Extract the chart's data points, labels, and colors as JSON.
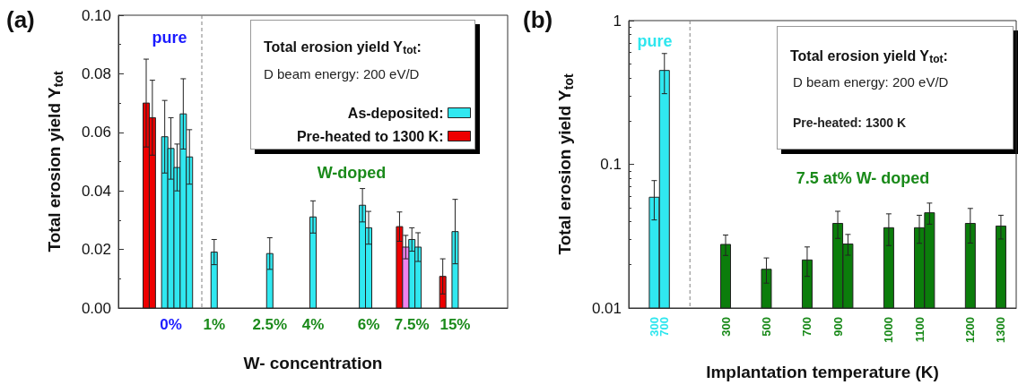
{
  "chart_data": [
    {
      "type": "bar",
      "title": "(a)",
      "xlabel": "W- concentration",
      "ylabel": "Total erosion yield Y$_{tot}$",
      "legend_title": "Total erosion yield Y$_{tot}$:",
      "annotations": [
        "D beam energy: 200 eV/D",
        "pure",
        "W-doped"
      ],
      "categories": [
        null,
        null,
        null,
        null,
        null,
        null,
        null,
        null,
        "0%",
        null,
        null,
        null,
        null,
        null,
        null,
        "1%",
        null,
        null,
        null,
        null,
        null,
        null,
        null,
        null,
        "2.5%",
        null,
        null,
        null,
        null,
        null,
        null,
        "4%",
        null,
        null,
        null,
        null,
        null,
        null,
        null,
        null,
        "6%",
        null,
        null,
        null,
        null,
        null,
        null,
        "7.5%",
        null,
        null,
        null,
        null,
        null,
        null,
        "15%",
        null,
        null,
        null,
        null,
        null,
        null,
        null,
        null
      ],
      "series": [
        {
          "name": "As-deposited:",
          "color": "#30e8f0",
          "values": [
            null,
            null,
            null,
            null,
            null,
            null,
            null,
            0.0585,
            0.0545,
            0.048,
            0.0663,
            0.0516,
            null,
            null,
            null,
            0.0191,
            null,
            null,
            null,
            null,
            null,
            null,
            null,
            null,
            0.0186,
            null,
            null,
            null,
            null,
            null,
            null,
            0.0311,
            null,
            null,
            null,
            null,
            null,
            null,
            null,
            0.0351,
            0.0274,
            null,
            null,
            null,
            null,
            null,
            null,
            0.0234,
            0.0208,
            null,
            null,
            null,
            null,
            null,
            0.0261,
            null,
            null,
            null,
            null,
            null,
            null,
            null,
            null
          ],
          "errors": [
            null,
            null,
            null,
            null,
            null,
            null,
            null,
            0.0124,
            0.0105,
            0.008,
            0.012,
            0.0093,
            null,
            null,
            null,
            0.0043,
            null,
            null,
            null,
            null,
            null,
            null,
            null,
            null,
            0.0054,
            null,
            null,
            null,
            null,
            null,
            null,
            0.0055,
            null,
            null,
            null,
            null,
            null,
            null,
            null,
            0.0057,
            0.0056,
            null,
            null,
            null,
            null,
            null,
            null,
            0.004,
            0.0049,
            null,
            null,
            null,
            null,
            null,
            0.011,
            null,
            null,
            null,
            null,
            null,
            null,
            null,
            null
          ]
        },
        {
          "name": "Pre-heated to 1300 K:",
          "color": "#ee0000",
          "values": [
            null,
            null,
            null,
            null,
            0.07,
            0.065,
            null,
            null,
            null,
            null,
            null,
            null,
            null,
            null,
            null,
            null,
            null,
            null,
            null,
            null,
            null,
            null,
            null,
            null,
            null,
            null,
            null,
            null,
            null,
            null,
            null,
            null,
            null,
            null,
            null,
            null,
            null,
            null,
            null,
            null,
            null,
            null,
            null,
            null,
            null,
            0.0278,
            null,
            null,
            null,
            null,
            null,
            null,
            0.0108,
            null,
            null,
            null,
            null,
            null,
            null,
            null,
            null,
            null,
            null
          ],
          "errors": [
            null,
            null,
            null,
            null,
            0.015,
            0.0128,
            null,
            null,
            null,
            null,
            null,
            null,
            null,
            null,
            null,
            null,
            null,
            null,
            null,
            null,
            null,
            null,
            null,
            null,
            null,
            null,
            null,
            null,
            null,
            null,
            null,
            null,
            null,
            null,
            null,
            null,
            null,
            null,
            null,
            null,
            null,
            null,
            null,
            null,
            null,
            0.005,
            null,
            null,
            null,
            null,
            null,
            null,
            0.006,
            null,
            null,
            null,
            null,
            null,
            null,
            null,
            null,
            null,
            null
          ]
        },
        {
          "color": "#ee82ee",
          "values": [
            null,
            null,
            null,
            null,
            null,
            null,
            null,
            null,
            null,
            null,
            null,
            null,
            null,
            null,
            null,
            null,
            null,
            null,
            null,
            null,
            null,
            null,
            null,
            null,
            null,
            null,
            null,
            null,
            null,
            null,
            null,
            null,
            null,
            null,
            null,
            null,
            null,
            null,
            null,
            null,
            null,
            null,
            null,
            null,
            null,
            null,
            0.0208,
            null,
            null,
            null,
            null,
            null,
            null,
            null,
            null,
            null,
            null,
            null,
            null,
            null,
            null,
            null,
            null
          ],
          "errors": [
            null,
            null,
            null,
            null,
            null,
            null,
            null,
            null,
            null,
            null,
            null,
            null,
            null,
            null,
            null,
            null,
            null,
            null,
            null,
            null,
            null,
            null,
            null,
            null,
            null,
            null,
            null,
            null,
            null,
            null,
            null,
            null,
            null,
            null,
            null,
            null,
            null,
            null,
            null,
            null,
            null,
            null,
            null,
            null,
            null,
            null,
            0.004,
            null,
            null,
            null,
            null,
            null,
            null,
            null,
            null,
            null,
            null,
            null,
            null,
            null,
            null,
            null,
            null
          ]
        }
      ],
      "ylim": [
        0,
        0.1
      ],
      "yticks": [
        {
          "value": 0,
          "label": "0.00"
        },
        {
          "value": 0.02,
          "label": "0.02"
        },
        {
          "value": 0.04,
          "label": "0.04"
        },
        {
          "value": 0.06,
          "label": "0.06"
        },
        {
          "value": 0.08,
          "label": "0.08"
        },
        {
          "value": 0.1,
          "label": "0.10"
        }
      ],
      "grid": false,
      "legend": "top right"
    },
    {
      "type": "bar",
      "title": "(b)",
      "xlabel": "Implantation temperature (K)",
      "ylabel": "Total erosion yield Y$_{tot}$",
      "legend_title": "Total erosion yield Y$_{tot}$:",
      "annotations": [
        "D beam energy: 200 eV/D",
        "Pre-heated: 1300 K",
        "pure",
        "7.5 at% W- doped"
      ],
      "categories": [
        null,
        null,
        "300",
        "700",
        null,
        null,
        null,
        null,
        null,
        "300",
        null,
        null,
        null,
        "500",
        null,
        null,
        null,
        "700",
        null,
        null,
        "900",
        null,
        null,
        null,
        null,
        "1000",
        null,
        null,
        "1100",
        null,
        null,
        null,
        null,
        "1200",
        null,
        null,
        "1300",
        null
      ],
      "series": [
        {
          "color": "#30e8f0",
          "values": [
            null,
            null,
            0.059,
            0.45,
            null,
            null,
            null,
            null,
            null,
            null,
            null,
            null,
            null,
            null,
            null,
            null,
            null,
            null,
            null,
            null,
            null,
            null,
            null,
            null,
            null,
            null,
            null,
            null,
            null,
            null,
            null,
            null,
            null,
            null,
            null,
            null,
            null,
            null
          ],
          "errors": [
            null,
            null,
            0.018,
            0.14,
            null,
            null,
            null,
            null,
            null,
            null,
            null,
            null,
            null,
            null,
            null,
            null,
            null,
            null,
            null,
            null,
            null,
            null,
            null,
            null,
            null,
            null,
            null,
            null,
            null,
            null,
            null,
            null,
            null,
            null,
            null,
            null,
            null,
            null
          ]
        },
        {
          "color": "#0b7d0b",
          "values": [
            null,
            null,
            null,
            null,
            null,
            null,
            null,
            null,
            null,
            0.0277,
            null,
            null,
            null,
            0.0186,
            null,
            null,
            null,
            0.0216,
            null,
            null,
            0.0388,
            0.0279,
            null,
            null,
            null,
            0.0362,
            null,
            null,
            0.0362,
            0.046,
            null,
            null,
            null,
            0.0388,
            null,
            null,
            0.0372,
            null
          ],
          "errors": [
            null,
            null,
            null,
            null,
            null,
            null,
            null,
            null,
            null,
            0.0045,
            null,
            null,
            null,
            0.0037,
            null,
            null,
            null,
            0.005,
            null,
            null,
            0.0083,
            0.0046,
            null,
            null,
            null,
            0.009,
            null,
            null,
            0.008,
            0.0077,
            null,
            null,
            null,
            0.0105,
            null,
            null,
            0.007,
            null
          ]
        }
      ],
      "log": true,
      "ylim": [
        0.01,
        1
      ],
      "yticks": [
        0.01,
        0.1,
        1
      ],
      "grid": false,
      "legend": false
    }
  ]
}
